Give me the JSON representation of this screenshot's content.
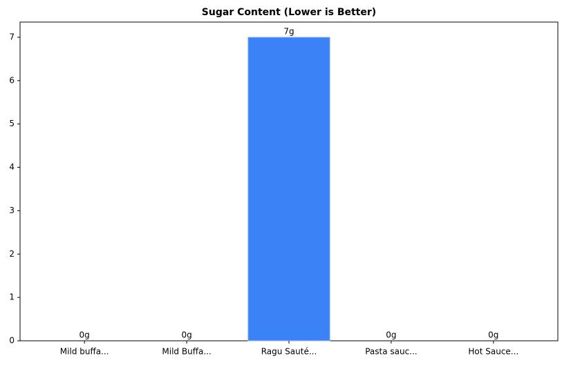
{
  "chart_data": {
    "type": "bar",
    "title": "Sugar Content (Lower is Better)",
    "categories": [
      "Mild buffa...",
      "Mild Buffa...",
      "Ragu Sauté...",
      "Pasta sauc...",
      "Hot Sauce..."
    ],
    "values": [
      0,
      0,
      7,
      0,
      0
    ],
    "value_labels": [
      "0g",
      "0g",
      "7g",
      "0g",
      "0g"
    ],
    "color": "#3b82f6",
    "ylim": [
      0,
      7.35
    ],
    "yticks": [
      0,
      1,
      2,
      3,
      4,
      5,
      6,
      7
    ],
    "grid": false
  }
}
